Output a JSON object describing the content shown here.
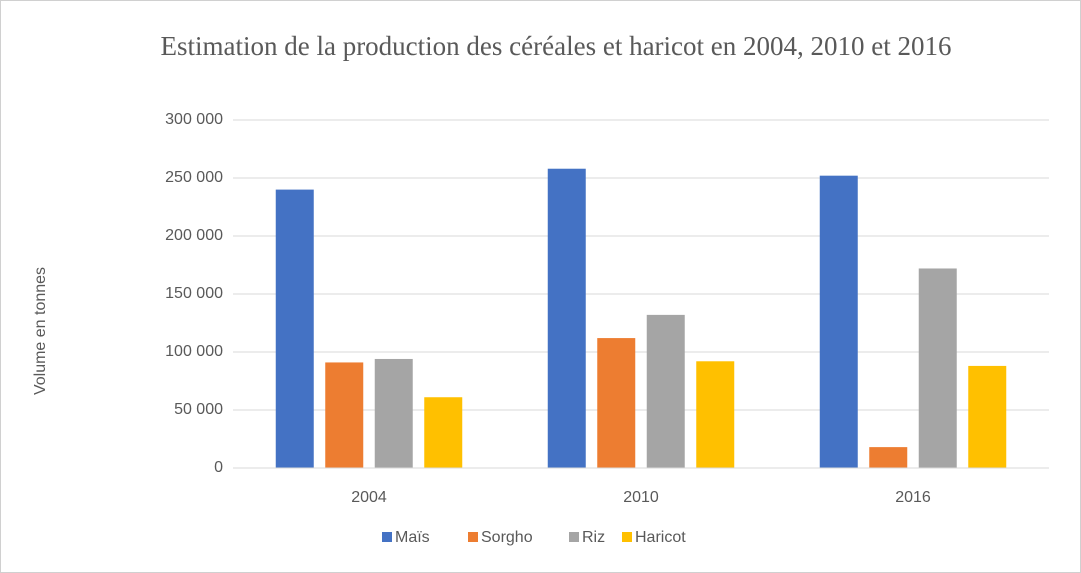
{
  "chart_data": {
    "type": "bar",
    "title": "Estimation de la production des céréales et haricot en 2004, 2010 et 2016",
    "y_label": "Volume en tonnes",
    "categories": [
      "2004",
      "2010",
      "2016"
    ],
    "series": [
      {
        "name": "Maïs",
        "color": "#4472c4",
        "values": [
          240000,
          258000,
          252000
        ]
      },
      {
        "name": "Sorgho",
        "color": "#ed7d31",
        "values": [
          91000,
          112000,
          18000
        ]
      },
      {
        "name": "Riz",
        "color": "#a5a5a5",
        "values": [
          94000,
          132000,
          172000
        ]
      },
      {
        "name": "Haricot",
        "color": "#ffc000",
        "values": [
          61000,
          92000,
          88000
        ]
      }
    ],
    "ylim": [
      0,
      300000
    ],
    "yticks": [
      0,
      {
        "value": 50000,
        "label": "50 000"
      },
      {
        "value": 100000,
        "label": "100 000"
      },
      {
        "value": 150000,
        "label": "150 000"
      },
      {
        "value": 200000,
        "label": "200 000"
      },
      {
        "value": 250000,
        "label": "250 000"
      },
      {
        "value": 300000,
        "label": "300 000"
      }
    ],
    "grid": true,
    "legend": "bottom"
  }
}
